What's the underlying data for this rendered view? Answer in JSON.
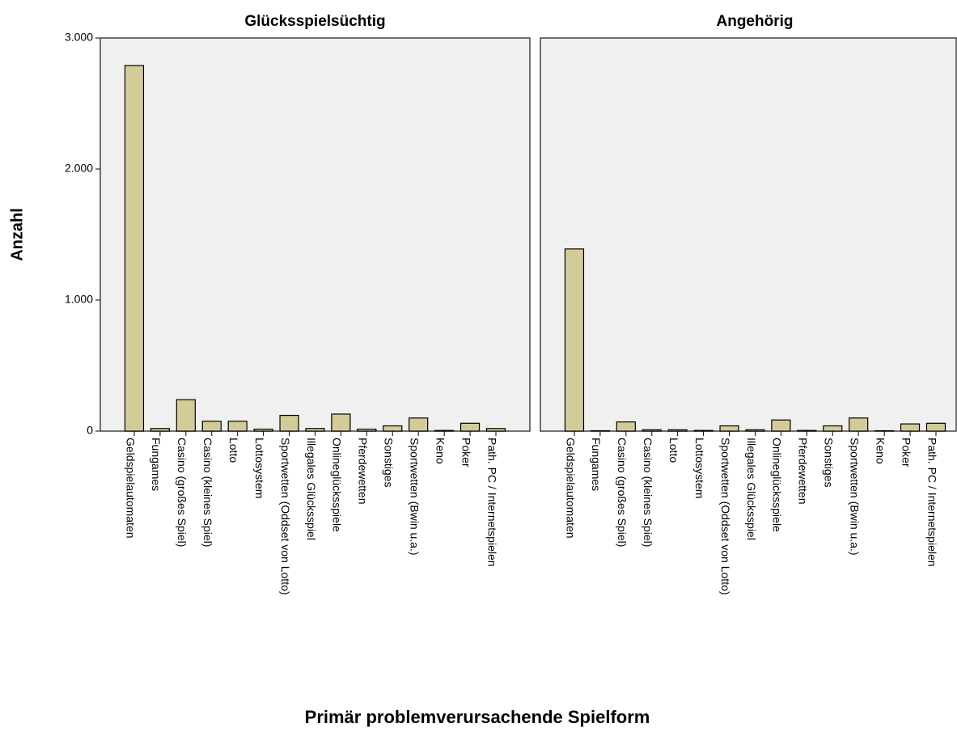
{
  "chart_data": {
    "type": "bar",
    "y_label": "Anzahl",
    "x_label": "Primär problemverursachende Spielform",
    "categories": [
      "Geldspielautomaten",
      "Fungames",
      "Casino (großes Spiel)",
      "Casino (kleines Spiel)",
      "Lotto",
      "Lottosystem",
      "Sportwetten (Oddset von Lotto)",
      "Illegales Glücksspiel",
      "Onlineglücksspiele",
      "Pferdewetten",
      "Sonstiges",
      "Sportwetten (Bwin u.a.)",
      "Keno",
      "Poker",
      "Path. PC / Internetspielen"
    ],
    "ylim": [
      0,
      3000
    ],
    "yticks": [
      0,
      {
        "value": 1000,
        "label": "1.000"
      },
      {
        "value": 2000,
        "label": "2.000"
      },
      {
        "value": 3000,
        "label": "3.000"
      }
    ],
    "color": "#d3cc98",
    "panels": [
      {
        "title": "Glücksspielsüchtig",
        "values": [
          2790,
          20,
          240,
          75,
          75,
          15,
          120,
          20,
          130,
          15,
          40,
          100,
          5,
          60,
          20
        ]
      },
      {
        "title": "Angehörig",
        "values": [
          1390,
          3,
          70,
          10,
          10,
          5,
          40,
          10,
          85,
          5,
          40,
          100,
          3,
          55,
          60
        ]
      }
    ]
  }
}
